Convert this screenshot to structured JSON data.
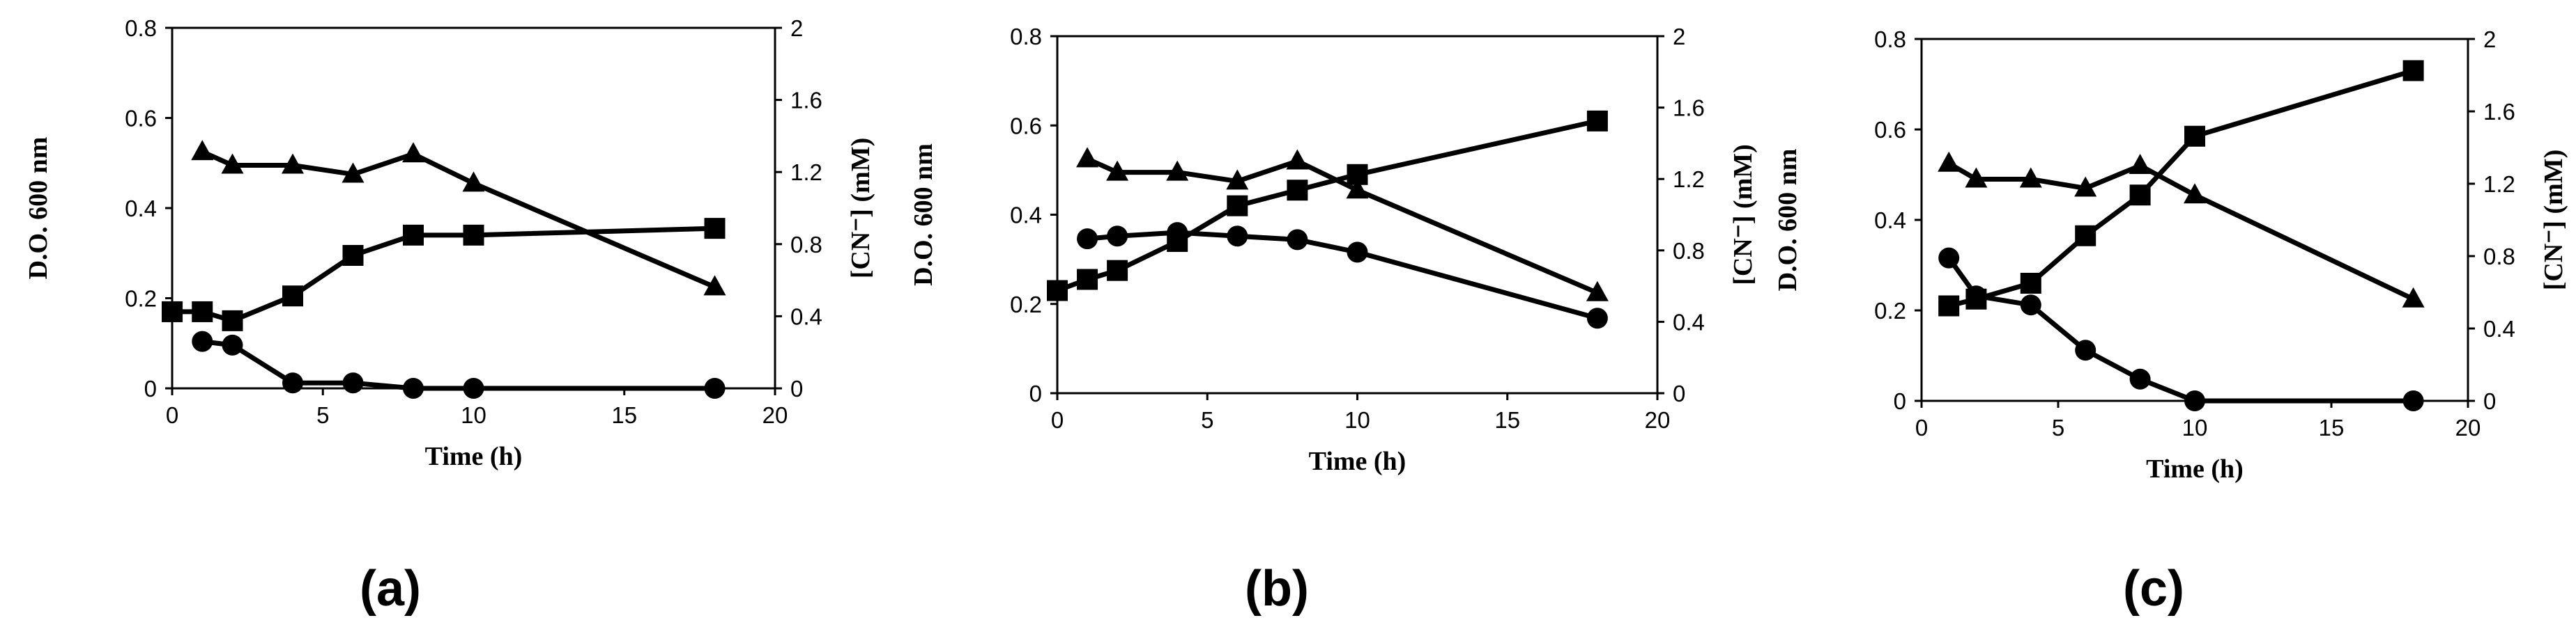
{
  "figure": {
    "panel_count": 3,
    "line_color": "#000000",
    "background": "#ffffff"
  },
  "chart_data": [
    {
      "type": "line",
      "panel_label": "(a)",
      "xlabel": "Time (h)",
      "ylabel": "D.O. 600 nm",
      "y2label": "[CN⁻] (mM)",
      "xlim": [
        0,
        20
      ],
      "ylim": [
        0,
        0.8
      ],
      "y2lim": [
        0,
        2
      ],
      "xticks": [
        0,
        5,
        10,
        15,
        20
      ],
      "yticks": [
        0,
        0.2,
        0.4,
        0.6,
        0.8
      ],
      "y2ticks": [
        0,
        0.4,
        0.8,
        1.2,
        1.6,
        2
      ],
      "ytick_labels": [
        "0",
        "0.2",
        "0.4",
        "0.6",
        "0.8"
      ],
      "y2tick_labels": [
        "0",
        "0.4",
        "0.8",
        "1.2",
        "1.6",
        "2"
      ],
      "series": [
        {
          "name": "D.O. 600 nm",
          "marker": "square",
          "axis": "left",
          "x": [
            0,
            1,
            2,
            4,
            6,
            8,
            10,
            18
          ],
          "y": [
            0.17,
            0.17,
            0.15,
            0.205,
            0.295,
            0.34,
            0.34,
            0.355
          ]
        },
        {
          "name": "triangle series",
          "marker": "triangle",
          "axis": "left",
          "x": [
            1,
            2,
            4,
            6,
            8,
            10,
            18
          ],
          "y": [
            0.525,
            0.495,
            0.495,
            0.475,
            0.52,
            0.455,
            0.225
          ]
        },
        {
          "name": "[CN-]",
          "marker": "circle",
          "axis": "right",
          "x": [
            1,
            2,
            4,
            6,
            8,
            10,
            18
          ],
          "y": [
            0.26,
            0.24,
            0.03,
            0.03,
            0.0,
            0.0,
            0.0
          ]
        }
      ]
    },
    {
      "type": "line",
      "panel_label": "(b)",
      "xlabel": "Time (h)",
      "ylabel": "D.O. 600 nm",
      "y2label": "[CN⁻] (mM)",
      "xlim": [
        0,
        20
      ],
      "ylim": [
        0,
        0.8
      ],
      "y2lim": [
        0,
        2
      ],
      "xticks": [
        0,
        5,
        10,
        15,
        20
      ],
      "yticks": [
        0,
        0.2,
        0.4,
        0.6,
        0.8
      ],
      "y2ticks": [
        0,
        0.4,
        0.8,
        1.2,
        1.6,
        2
      ],
      "ytick_labels": [
        "0",
        "0.2",
        "0.4",
        "0.6",
        "0.8"
      ],
      "y2tick_labels": [
        "0",
        "0.4",
        "0.8",
        "1.2",
        "1.6",
        "2"
      ],
      "series": [
        {
          "name": "D.O. 600 nm",
          "marker": "square",
          "axis": "left",
          "x": [
            0,
            1,
            2,
            4,
            6,
            8,
            10,
            18
          ],
          "y": [
            0.23,
            0.255,
            0.275,
            0.34,
            0.42,
            0.455,
            0.49,
            0.61
          ]
        },
        {
          "name": "triangle series",
          "marker": "triangle",
          "axis": "left",
          "x": [
            1,
            2,
            4,
            6,
            8,
            10,
            18
          ],
          "y": [
            0.525,
            0.495,
            0.495,
            0.475,
            0.52,
            0.455,
            0.225
          ]
        },
        {
          "name": "[CN-]",
          "marker": "circle",
          "axis": "right",
          "x": [
            1,
            2,
            4,
            6,
            8,
            10,
            18
          ],
          "y": [
            0.865,
            0.88,
            0.9,
            0.88,
            0.86,
            0.79,
            0.42
          ]
        }
      ]
    },
    {
      "type": "line",
      "panel_label": "(c)",
      "xlabel": "Time (h)",
      "ylabel": "D.O. 600 nm",
      "y2label": "[CN⁻] (mM)",
      "xlim": [
        0,
        20
      ],
      "ylim": [
        0,
        0.8
      ],
      "y2lim": [
        0,
        2
      ],
      "xticks": [
        0,
        5,
        10,
        15,
        20
      ],
      "yticks": [
        0,
        0.2,
        0.4,
        0.6,
        0.8
      ],
      "y2ticks": [
        0,
        0.4,
        0.8,
        1.2,
        1.6,
        2
      ],
      "ytick_labels": [
        "0",
        "0.2",
        "0.4",
        "0.6",
        "0.8"
      ],
      "y2tick_labels": [
        "0",
        "0.4",
        "0.8",
        "1.2",
        "1.6",
        "2"
      ],
      "series": [
        {
          "name": "D.O. 600 nm",
          "marker": "square",
          "axis": "left",
          "x": [
            1,
            2,
            4,
            6,
            8,
            10,
            18
          ],
          "y": [
            0.21,
            0.225,
            0.26,
            0.365,
            0.455,
            0.585,
            0.73
          ]
        },
        {
          "name": "triangle series",
          "marker": "triangle",
          "axis": "left",
          "x": [
            1,
            2,
            4,
            6,
            8,
            10,
            18
          ],
          "y": [
            0.525,
            0.49,
            0.49,
            0.47,
            0.52,
            0.455,
            0.225
          ]
        },
        {
          "name": "[CN-]",
          "marker": "circle",
          "axis": "right",
          "x": [
            1,
            2,
            4,
            6,
            8,
            10,
            18
          ],
          "y": [
            0.79,
            0.58,
            0.53,
            0.28,
            0.12,
            0.0,
            0.0
          ]
        }
      ]
    }
  ]
}
